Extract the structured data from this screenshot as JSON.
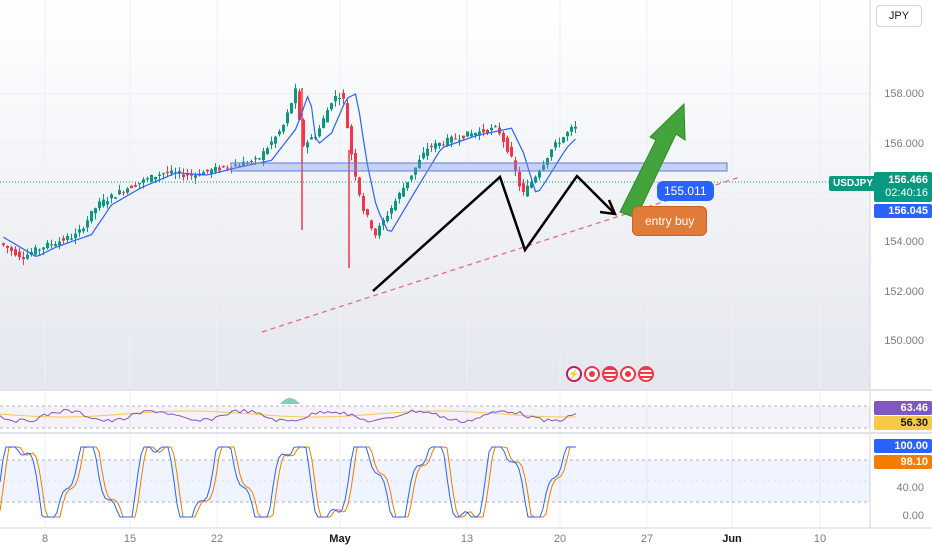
{
  "currency": "JPY",
  "symbol": "USDJPY",
  "last_price": "156.466",
  "countdown": "02:40:16",
  "ma_value": "156.045",
  "annotation_price": "155.011",
  "annotation_text": "entry buy",
  "price_axis": [
    "158.000",
    "156.000",
    "154.000",
    "152.000",
    "150.000"
  ],
  "rsi_axis": [
    "63.46",
    "56.30"
  ],
  "stoch_axis": [
    "100.00",
    "98.10",
    "40.00",
    "0.00"
  ],
  "date_axis": [
    "8",
    "15",
    "22",
    "May",
    "13",
    "20",
    "27",
    "Jun",
    "10"
  ],
  "colors": {
    "up": "#089981",
    "down": "#f23645",
    "ma": "#2962ff",
    "rsi_line": "#7e57c2",
    "rsi_ma": "#f7c948",
    "arrow_green": "#43a43b"
  }
}
